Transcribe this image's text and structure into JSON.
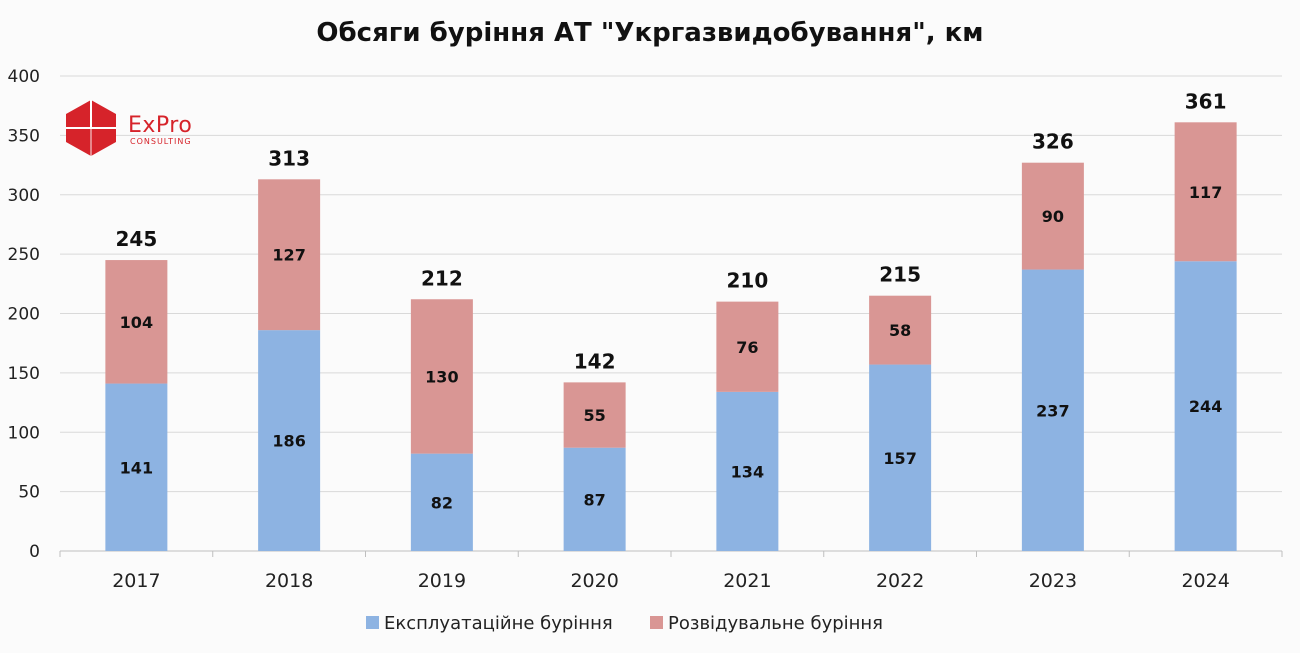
{
  "logo": {
    "word": "ExPro",
    "sub": "CONSULTING"
  },
  "colors": {
    "exploitation": "#8db3e2",
    "exploration": "#d99694",
    "grid": "#d9d9d9"
  },
  "chart_data": {
    "type": "bar",
    "stacked": true,
    "title": "Обсяги буріння АТ \"Укргазвидобування\", км",
    "xlabel": "",
    "ylabel": "",
    "categories": [
      "2017",
      "2018",
      "2019",
      "2020",
      "2021",
      "2022",
      "2023",
      "2024"
    ],
    "series": [
      {
        "name": "Експлуатаційне буріння",
        "values": [
          141,
          186,
          82,
          87,
          134,
          157,
          237,
          244
        ]
      },
      {
        "name": "Розвідувальне буріння",
        "values": [
          104,
          127,
          130,
          55,
          76,
          58,
          90,
          117
        ]
      }
    ],
    "totals": [
      245,
      313,
      212,
      142,
      210,
      215,
      326,
      361
    ],
    "ylim": [
      0,
      400
    ],
    "yticks": [
      0,
      50,
      100,
      150,
      200,
      250,
      300,
      350,
      400
    ],
    "grid": true,
    "legend": "bottom"
  }
}
